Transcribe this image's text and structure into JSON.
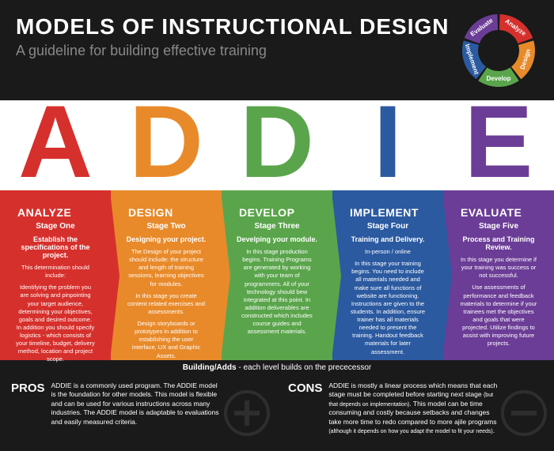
{
  "header": {
    "title": "MODELS OF INSTRUCTIONAL DESIGN",
    "subtitle": "A guideline for building effective training"
  },
  "wheel": {
    "segments": [
      {
        "label": "Analyze",
        "color": "#d6302c"
      },
      {
        "label": "Design",
        "color": "#e88a2a"
      },
      {
        "label": "Develop",
        "color": "#5aa54b"
      },
      {
        "label": "Implement",
        "color": "#2b5aa0"
      },
      {
        "label": "Evaluate",
        "color": "#6b3d96"
      }
    ],
    "background": "#1a1a1a"
  },
  "letters": [
    {
      "char": "A",
      "color": "#d6302c"
    },
    {
      "char": "D",
      "color": "#e88a2a"
    },
    {
      "char": "D",
      "color": "#5aa54b"
    },
    {
      "char": "I",
      "color": "#2b5aa0"
    },
    {
      "char": "E",
      "color": "#6b3d96"
    }
  ],
  "stages": [
    {
      "title": "ANALYZE",
      "stage": "Stage One",
      "subtitle": "Establish the specifications of the project.",
      "body1": "This determination should include:",
      "body2": "Identifying the problem you are solving and pinpointing your target audience, determining your objectives, goals and desired outcome. In addition you should specify logistics - which consists of your timeline, budget, delivery method, location and project scope.",
      "bg": "#d6302c"
    },
    {
      "title": "DESIGN",
      "stage": "Stage Two",
      "subtitle": "Designing your project.",
      "body1": "The Design of your project should include: the structure and length of training sessions, learning objectives for modules.",
      "body2": "In this stage you create content related exercises and assessments.",
      "body3": "Design storyboards or prototypes in addition to establishing the user interface, UX and Graphic Assets.",
      "bg": "#e88a2a"
    },
    {
      "title": "DEVELOP",
      "stage": "Stage Three",
      "subtitle": "Develping your module.",
      "body1": "In this stage production begins. Training Programs are generated by working with your team of programmers. All of your technology should bew integrated at this point. In addition deliverables are constructed which includes course guides and assessment materials.",
      "bg": "#5aa54b"
    },
    {
      "title": "IMPLEMENT",
      "stage": "Stage Four",
      "subtitle": "Training and Delivery.",
      "body1": "In-person / online",
      "body2": "In this stage your training begins. You need to include all materials needed and make sure all functions of website are functioning. Instructions are given to the students. In addition, ensure trainer has all materials needed to present the training. Handout feedback materials for later assessment.",
      "bg": "#2b5aa0"
    },
    {
      "title": "EVALUATE",
      "stage": "Stage Five",
      "subtitle": "Process and Training Review.",
      "body1": "In this stage you determine if your training was success or not successful.",
      "body2": "Use assessments of performance and feedback materials to determine if your trainees met the objectives and goals that were projected. Utilize findings to assist with improving future projects.",
      "bg": "#6b3d96"
    }
  ],
  "building": {
    "label": "Building/Adds",
    "text": " - each level builds on the prececessor"
  },
  "pros": {
    "label": "PROS",
    "text": "ADDIE is a commonly used program. The ADDIE model is the foundation for other models. This model is flexible and can be used for various instructions across many industries. The ADDIE model is adaptable to evaluations and easily measured criteria."
  },
  "cons": {
    "label": "CONS",
    "text1": "ADDIE is mostly a linear process which means that each stage must be completed before starting next stage ",
    "small1": "(but that depends on implementation)",
    "text2": ". This model can be time consuming and costly because setbacks and changes take more time to redo compared to more ajile programs ",
    "small2": "(although it depends on how you adapt the model to fit your needs)",
    "text3": "."
  },
  "colors": {
    "header_bg": "#1a1a1a",
    "subtitle_color": "#888888",
    "icon_stroke": "#555555"
  }
}
